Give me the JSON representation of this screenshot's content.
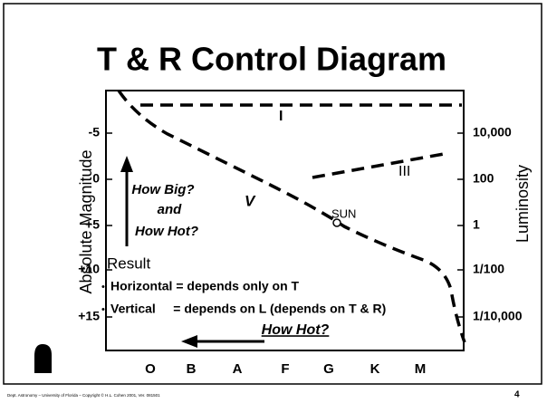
{
  "title": "T & R Control Diagram",
  "y_axis_label": "Absolute Magnitude",
  "y2_axis_label": "Luminosity",
  "magnitude_labels": [
    "-5",
    "0",
    "+5",
    "+10",
    "+15"
  ],
  "luminosity_labels": [
    "10,000",
    "100",
    "1",
    "1/100",
    "1/10,000"
  ],
  "spectral_labels": [
    "O",
    "B",
    "A",
    "F",
    "G",
    "K",
    "M"
  ],
  "region_labels": {
    "supergiants": "I",
    "giants": "III",
    "main_sequence": "V",
    "sun": "SUN"
  },
  "vertical_arrow": [
    "How Big?",
    "and",
    "How Hot?"
  ],
  "horizontal_arrow": "How Hot?",
  "result": {
    "heading": "Result",
    "lines": [
      "Horizontal = depends only on T",
      "Vertical     = depends on L (depends on T & R)"
    ]
  },
  "footer": {
    "credit": "Dept. Astronomy  – University of Florida  – Copyright © H.L. Cohen 2001, Ver. 081501",
    "page": "4"
  }
}
